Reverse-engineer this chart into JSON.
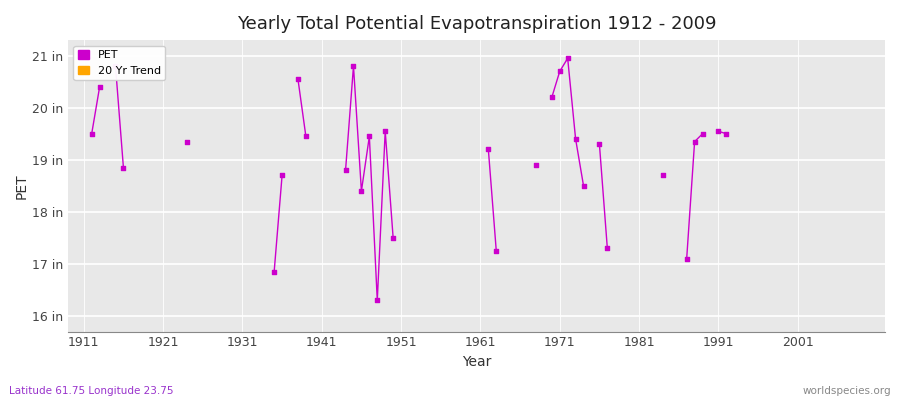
{
  "title": "Yearly Total Potential Evapotranspiration 1912 - 2009",
  "xlabel": "Year",
  "ylabel": "PET",
  "subtitle_lat_lon": "Latitude 61.75 Longitude 23.75",
  "watermark": "worldspecies.org",
  "pet_color": "#cc00cc",
  "trend_color": "#ffa500",
  "background_color": "#e8e8e8",
  "fig_background": "#ffffff",
  "grid_color": "#ffffff",
  "ylim": [
    15.7,
    21.3
  ],
  "xlim": [
    1909,
    2012
  ],
  "yticks": [
    16,
    17,
    18,
    19,
    20,
    21
  ],
  "ytick_labels": [
    "16 in",
    "17 in",
    "18 in",
    "19 in",
    "20 in",
    "21 in"
  ],
  "xticks": [
    1911,
    1921,
    1931,
    1941,
    1951,
    1961,
    1971,
    1981,
    1991,
    2001
  ],
  "segments": [
    [
      [
        1912,
        19.5
      ],
      [
        1913,
        20.4
      ]
    ],
    [
      [
        1915,
        20.8
      ],
      [
        1916,
        18.85
      ]
    ],
    [
      [
        1924,
        19.35
      ]
    ],
    [
      [
        1935,
        16.85
      ],
      [
        1936,
        18.7
      ]
    ],
    [
      [
        1938,
        20.55
      ],
      [
        1939,
        19.45
      ]
    ],
    [
      [
        1944,
        18.8
      ],
      [
        1945,
        20.8
      ],
      [
        1946,
        18.4
      ],
      [
        1947,
        19.45
      ],
      [
        1948,
        16.3
      ],
      [
        1949,
        19.55
      ],
      [
        1950,
        17.5
      ]
    ],
    [
      [
        1962,
        19.2
      ],
      [
        1963,
        17.25
      ]
    ],
    [
      [
        1968,
        18.9
      ]
    ],
    [
      [
        1970,
        20.2
      ],
      [
        1971,
        20.7
      ],
      [
        1972,
        20.95
      ],
      [
        1973,
        19.4
      ],
      [
        1974,
        18.5
      ]
    ],
    [
      [
        1976,
        19.3
      ],
      [
        1977,
        17.3
      ]
    ],
    [
      [
        1984,
        18.7
      ]
    ],
    [
      [
        1987,
        17.1
      ],
      [
        1988,
        19.35
      ],
      [
        1989,
        19.5
      ]
    ],
    [
      [
        1991,
        19.55
      ],
      [
        1992,
        19.5
      ]
    ]
  ],
  "legend_pet_label": "PET",
  "legend_trend_label": "20 Yr Trend"
}
